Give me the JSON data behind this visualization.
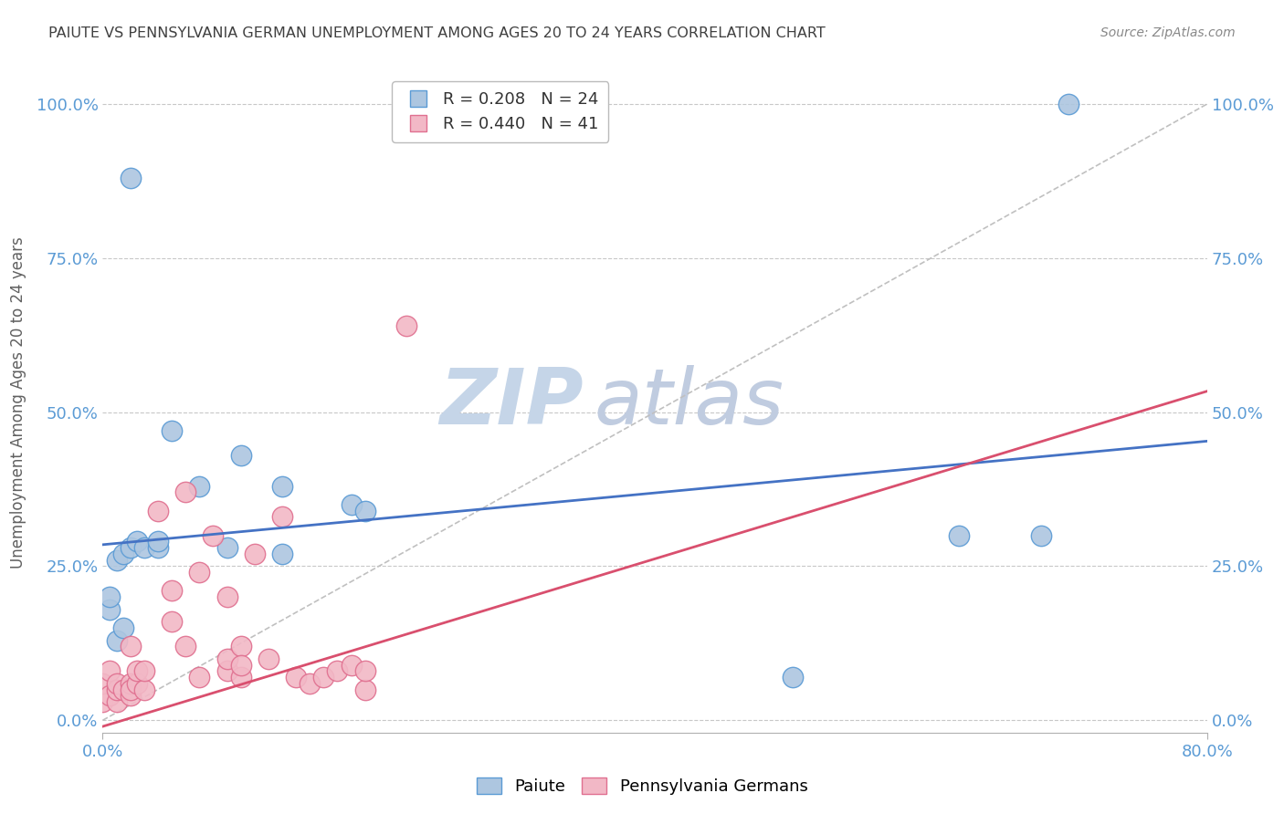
{
  "title": "PAIUTE VS PENNSYLVANIA GERMAN UNEMPLOYMENT AMONG AGES 20 TO 24 YEARS CORRELATION CHART",
  "source": "Source: ZipAtlas.com",
  "ylabel": "Unemployment Among Ages 20 to 24 years",
  "xlim": [
    0.0,
    0.8
  ],
  "ylim": [
    -0.02,
    1.05
  ],
  "yticks": [
    0.0,
    0.25,
    0.5,
    0.75,
    1.0
  ],
  "xticks": [
    0.0,
    0.8
  ],
  "watermark_line1": "ZIP",
  "watermark_line2": "atlas",
  "legend_blue_R": "0.208",
  "legend_blue_N": "24",
  "legend_pink_R": "0.440",
  "legend_pink_N": "41",
  "blue_scatter_x": [
    0.005,
    0.005,
    0.01,
    0.01,
    0.015,
    0.015,
    0.02,
    0.025,
    0.03,
    0.04,
    0.04,
    0.05,
    0.07,
    0.09,
    0.1,
    0.13,
    0.13,
    0.18,
    0.19,
    0.5,
    0.62,
    0.68,
    0.7,
    0.02
  ],
  "blue_scatter_y": [
    0.18,
    0.2,
    0.13,
    0.26,
    0.15,
    0.27,
    0.28,
    0.29,
    0.28,
    0.28,
    0.29,
    0.47,
    0.38,
    0.28,
    0.43,
    0.38,
    0.27,
    0.35,
    0.34,
    0.07,
    0.3,
    0.3,
    1.0,
    0.88
  ],
  "pink_scatter_x": [
    0.0,
    0.0,
    0.005,
    0.005,
    0.01,
    0.01,
    0.01,
    0.015,
    0.02,
    0.02,
    0.02,
    0.02,
    0.025,
    0.025,
    0.03,
    0.03,
    0.04,
    0.05,
    0.05,
    0.06,
    0.06,
    0.07,
    0.07,
    0.08,
    0.09,
    0.09,
    0.09,
    0.1,
    0.1,
    0.1,
    0.11,
    0.12,
    0.13,
    0.14,
    0.15,
    0.16,
    0.17,
    0.18,
    0.19,
    0.19,
    0.22
  ],
  "pink_scatter_y": [
    0.03,
    0.06,
    0.04,
    0.08,
    0.03,
    0.05,
    0.06,
    0.05,
    0.04,
    0.06,
    0.05,
    0.12,
    0.06,
    0.08,
    0.05,
    0.08,
    0.34,
    0.16,
    0.21,
    0.37,
    0.12,
    0.07,
    0.24,
    0.3,
    0.08,
    0.2,
    0.1,
    0.07,
    0.12,
    0.09,
    0.27,
    0.1,
    0.33,
    0.07,
    0.06,
    0.07,
    0.08,
    0.09,
    0.05,
    0.08,
    0.64
  ],
  "blue_color": "#adc6e0",
  "blue_edge_color": "#5b9bd5",
  "pink_color": "#f2b8c6",
  "pink_edge_color": "#e07090",
  "blue_line_color": "#4472c4",
  "pink_line_color": "#d94f6e",
  "grid_color": "#c8c8c8",
  "background_color": "#ffffff",
  "title_color": "#404040",
  "axis_label_color": "#606060",
  "tick_color_left": "#5b9bd5",
  "tick_color_right": "#5b9bd5",
  "watermark_color_zip": "#c5d5e8",
  "watermark_color_atlas": "#c0cce0",
  "dashed_line_color": "#c0c0c0",
  "blue_line_intercept": 0.285,
  "blue_line_slope": 0.21,
  "pink_line_intercept": -0.01,
  "pink_line_slope": 0.68
}
